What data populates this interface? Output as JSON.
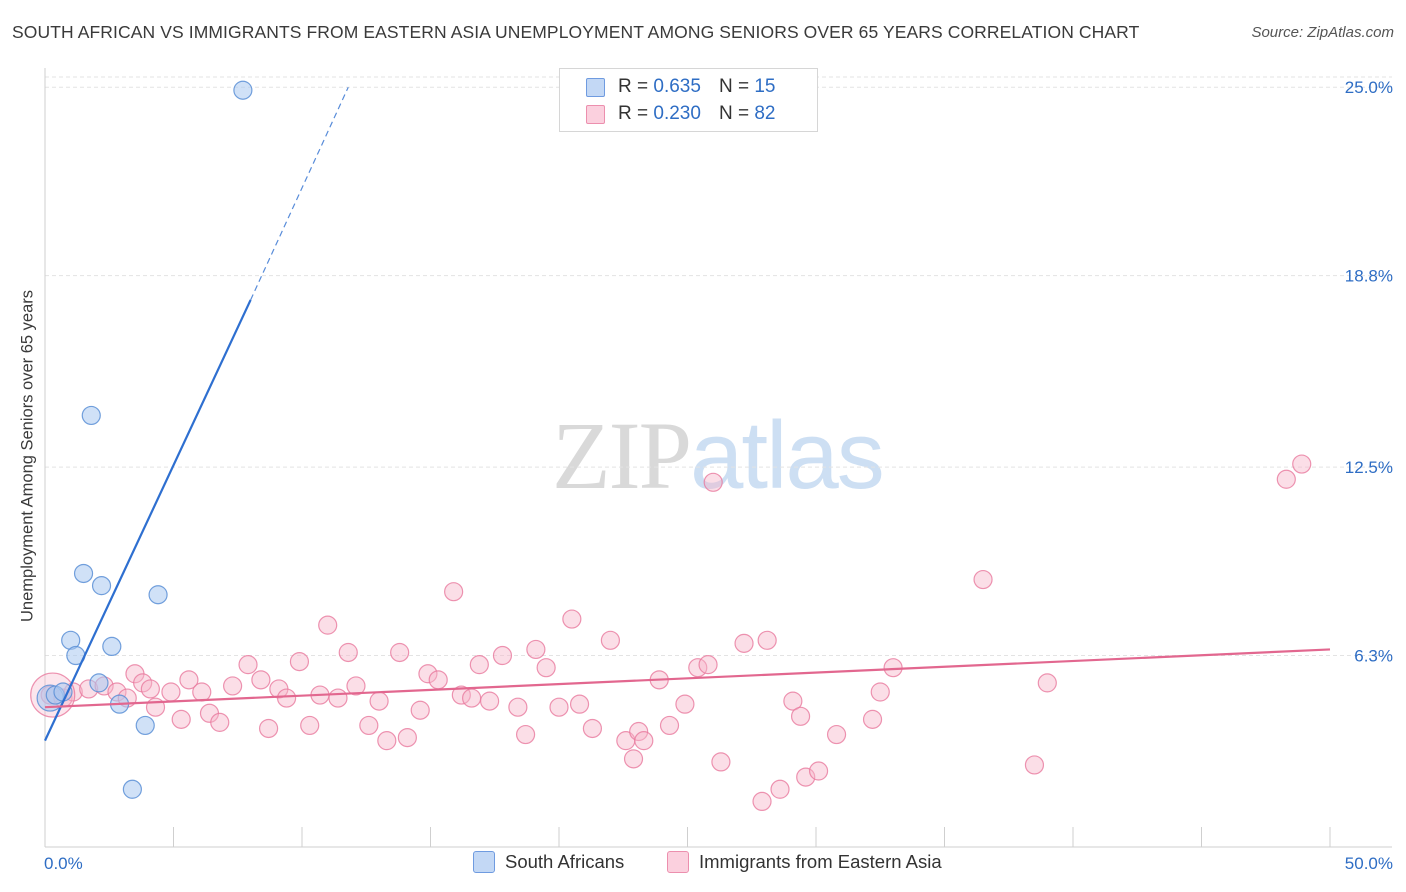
{
  "title": "SOUTH AFRICAN VS IMMIGRANTS FROM EASTERN ASIA UNEMPLOYMENT AMONG SENIORS OVER 65 YEARS CORRELATION CHART",
  "source": "Source: ZipAtlas.com",
  "watermark": {
    "zip": "ZIP",
    "atlas": "atlas"
  },
  "legend_top": [
    {
      "r_label": "R =",
      "r_value": "0.635",
      "n_label": "N =",
      "n_value": "15"
    },
    {
      "r_label": "R =",
      "r_value": "0.230",
      "n_label": "N =",
      "n_value": "82"
    }
  ],
  "colors": {
    "blue_fill": "#a9c9f0",
    "blue_stroke": "#5b8fd6",
    "blue_line": "#2e6fd0",
    "pink_fill": "#f6b6ca",
    "pink_stroke": "#e8799d",
    "pink_line": "#e2678f",
    "grid": "#e3e3e3",
    "axis_text": "#2e6dc4"
  },
  "chart_data": {
    "type": "scatter",
    "title": "SOUTH AFRICAN VS IMMIGRANTS FROM EASTERN ASIA UNEMPLOYMENT AMONG SENIORS OVER 65 YEARS CORRELATION CHART",
    "xlabel": "",
    "ylabel": "Unemployment Among Seniors over 65 years",
    "xlim": [
      0,
      50
    ],
    "ylim": [
      0,
      25.5
    ],
    "x_tick_labels": [
      "0.0%",
      "50.0%"
    ],
    "y_ticks": [
      6.3,
      12.5,
      18.8,
      25.0
    ],
    "y_tick_labels": [
      "6.3%",
      "12.5%",
      "18.8%",
      "25.0%"
    ],
    "grid": true,
    "legend_position": "top-center and bottom",
    "series": [
      {
        "name": "South Africans",
        "r": 0.635,
        "n": 15,
        "points": [
          [
            0.2,
            4.9
          ],
          [
            0.4,
            5.0
          ],
          [
            0.7,
            5.1
          ],
          [
            1.0,
            6.8
          ],
          [
            1.2,
            6.3
          ],
          [
            1.5,
            9.0
          ],
          [
            1.8,
            14.2
          ],
          [
            2.2,
            8.6
          ],
          [
            2.1,
            5.4
          ],
          [
            2.6,
            6.6
          ],
          [
            2.9,
            4.7
          ],
          [
            3.9,
            4.0
          ],
          [
            4.4,
            8.3
          ],
          [
            3.4,
            1.9
          ],
          [
            7.7,
            24.9
          ]
        ],
        "trend": {
          "x0": 0,
          "y0": 3.5,
          "x1": 8.0,
          "y1": 18.0,
          "dash_x1": 11.8,
          "dash_y1": 25.0
        }
      },
      {
        "name": "Immigrants from Eastern Asia",
        "r": 0.23,
        "n": 82,
        "points": [
          [
            0.2,
            5.0
          ],
          [
            0.7,
            4.9
          ],
          [
            1.1,
            5.1
          ],
          [
            1.7,
            5.2
          ],
          [
            2.3,
            5.3
          ],
          [
            2.8,
            5.1
          ],
          [
            3.2,
            4.9
          ],
          [
            3.5,
            5.7
          ],
          [
            3.8,
            5.4
          ],
          [
            4.1,
            5.2
          ],
          [
            4.3,
            4.6
          ],
          [
            4.9,
            5.1
          ],
          [
            5.3,
            4.2
          ],
          [
            5.6,
            5.5
          ],
          [
            6.1,
            5.1
          ],
          [
            6.4,
            4.4
          ],
          [
            6.8,
            4.1
          ],
          [
            7.3,
            5.3
          ],
          [
            7.9,
            6.0
          ],
          [
            8.4,
            5.5
          ],
          [
            8.7,
            3.9
          ],
          [
            9.1,
            5.2
          ],
          [
            9.4,
            4.9
          ],
          [
            9.9,
            6.1
          ],
          [
            10.3,
            4.0
          ],
          [
            10.7,
            5.0
          ],
          [
            11.0,
            7.3
          ],
          [
            11.4,
            4.9
          ],
          [
            11.8,
            6.4
          ],
          [
            12.1,
            5.3
          ],
          [
            12.6,
            4.0
          ],
          [
            13.0,
            4.8
          ],
          [
            13.3,
            3.5
          ],
          [
            13.8,
            6.4
          ],
          [
            14.1,
            3.6
          ],
          [
            14.6,
            4.5
          ],
          [
            14.9,
            5.7
          ],
          [
            15.3,
            5.5
          ],
          [
            15.9,
            8.4
          ],
          [
            16.2,
            5.0
          ],
          [
            16.6,
            4.9
          ],
          [
            16.9,
            6.0
          ],
          [
            17.3,
            4.8
          ],
          [
            17.8,
            6.3
          ],
          [
            18.4,
            4.6
          ],
          [
            18.7,
            3.7
          ],
          [
            19.1,
            6.5
          ],
          [
            19.5,
            5.9
          ],
          [
            20.0,
            4.6
          ],
          [
            20.5,
            7.5
          ],
          [
            20.8,
            4.7
          ],
          [
            21.3,
            3.9
          ],
          [
            22.0,
            6.8
          ],
          [
            22.6,
            3.5
          ],
          [
            22.9,
            2.9
          ],
          [
            23.1,
            3.8
          ],
          [
            23.3,
            3.5
          ],
          [
            23.9,
            5.5
          ],
          [
            24.3,
            4.0
          ],
          [
            24.9,
            4.7
          ],
          [
            25.4,
            5.9
          ],
          [
            25.8,
            6.0
          ],
          [
            26.0,
            12.0
          ],
          [
            26.3,
            2.8
          ],
          [
            27.2,
            6.7
          ],
          [
            27.9,
            1.5
          ],
          [
            28.1,
            6.8
          ],
          [
            28.6,
            1.9
          ],
          [
            29.1,
            4.8
          ],
          [
            29.4,
            4.3
          ],
          [
            29.6,
            2.3
          ],
          [
            30.1,
            2.5
          ],
          [
            30.8,
            3.7
          ],
          [
            32.2,
            4.2
          ],
          [
            32.5,
            5.1
          ],
          [
            33.0,
            5.9
          ],
          [
            36.5,
            8.8
          ],
          [
            38.5,
            2.7
          ],
          [
            39.0,
            5.4
          ],
          [
            48.3,
            12.1
          ],
          [
            48.9,
            12.6
          ],
          [
            0.3,
            5.0
          ]
        ],
        "trend": {
          "x0": 0,
          "y0": 4.6,
          "x1": 50,
          "y1": 6.5
        }
      }
    ]
  },
  "legend_bottom": [
    "South Africans",
    "Immigrants from Eastern Asia"
  ]
}
